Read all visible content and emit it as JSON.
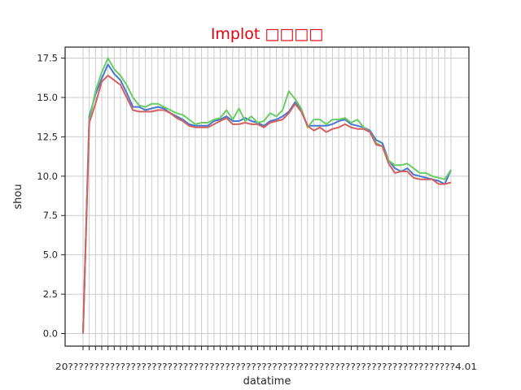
{
  "chart_data": {
    "type": "line",
    "title": "Implot □□□□",
    "xlabel": "datatime",
    "ylabel": "shou",
    "ylim": [
      -0.8,
      18.2
    ],
    "yticks": [
      "0.0",
      "2.5",
      "5.0",
      "7.5",
      "10.0",
      "12.5",
      "15.0",
      "17.5"
    ],
    "ytick_values": [
      0,
      2.5,
      5,
      7.5,
      10,
      12.5,
      15,
      17.5
    ],
    "xtick_label_text": "20??????????????????????????????????????????????????????????????????????????4.01",
    "grid": true,
    "legend": "none",
    "series": [
      {
        "color": "#4878d0",
        "values": [
          0,
          13.8,
          15.2,
          16.2,
          17.1,
          16.5,
          16.1,
          15.3,
          14.4,
          14.4,
          14.2,
          14.3,
          14.4,
          14.3,
          14.0,
          13.8,
          13.6,
          13.3,
          13.2,
          13.2,
          13.2,
          13.5,
          13.6,
          13.8,
          13.5,
          13.5,
          13.7,
          13.5,
          13.4,
          13.2,
          13.5,
          13.6,
          13.8,
          14.1,
          14.7,
          14.2,
          13.2,
          13.2,
          13.2,
          13.2,
          13.3,
          13.5,
          13.6,
          13.3,
          13.2,
          13.1,
          12.9,
          12.3,
          12.1,
          11.0,
          10.5,
          10.3,
          10.5,
          10.1,
          10.0,
          9.9,
          9.8,
          9.7,
          9.5,
          10.4
        ]
      },
      {
        "color": "#6acc64",
        "values": [
          0,
          13.5,
          15.4,
          16.6,
          17.5,
          16.8,
          16.4,
          15.8,
          15.0,
          14.5,
          14.4,
          14.6,
          14.6,
          14.4,
          14.2,
          14.0,
          13.9,
          13.6,
          13.3,
          13.4,
          13.4,
          13.6,
          13.7,
          14.2,
          13.6,
          14.3,
          13.5,
          13.8,
          13.4,
          13.5,
          14.0,
          13.8,
          14.2,
          15.4,
          14.9,
          14.3,
          13.1,
          13.6,
          13.6,
          13.3,
          13.6,
          13.6,
          13.7,
          13.4,
          13.6,
          13.1,
          12.8,
          12.1,
          11.9,
          11.0,
          10.7,
          10.7,
          10.8,
          10.5,
          10.2,
          10.2,
          10.0,
          9.9,
          9.8,
          10.4
        ]
      },
      {
        "color": "#d65f5f",
        "values": [
          0,
          13.4,
          14.6,
          16.0,
          16.4,
          16.1,
          15.8,
          15.0,
          14.2,
          14.1,
          14.1,
          14.1,
          14.2,
          14.2,
          14.0,
          13.7,
          13.5,
          13.2,
          13.1,
          13.1,
          13.1,
          13.3,
          13.5,
          13.7,
          13.3,
          13.3,
          13.4,
          13.3,
          13.3,
          13.1,
          13.4,
          13.5,
          13.6,
          14.0,
          14.6,
          14.1,
          13.2,
          12.9,
          13.1,
          12.8,
          13.0,
          13.1,
          13.3,
          13.1,
          13.0,
          13.0,
          12.8,
          12.0,
          11.9,
          10.8,
          10.2,
          10.3,
          10.3,
          9.9,
          9.8,
          9.8,
          9.8,
          9.5,
          9.5,
          9.6
        ]
      }
    ]
  }
}
